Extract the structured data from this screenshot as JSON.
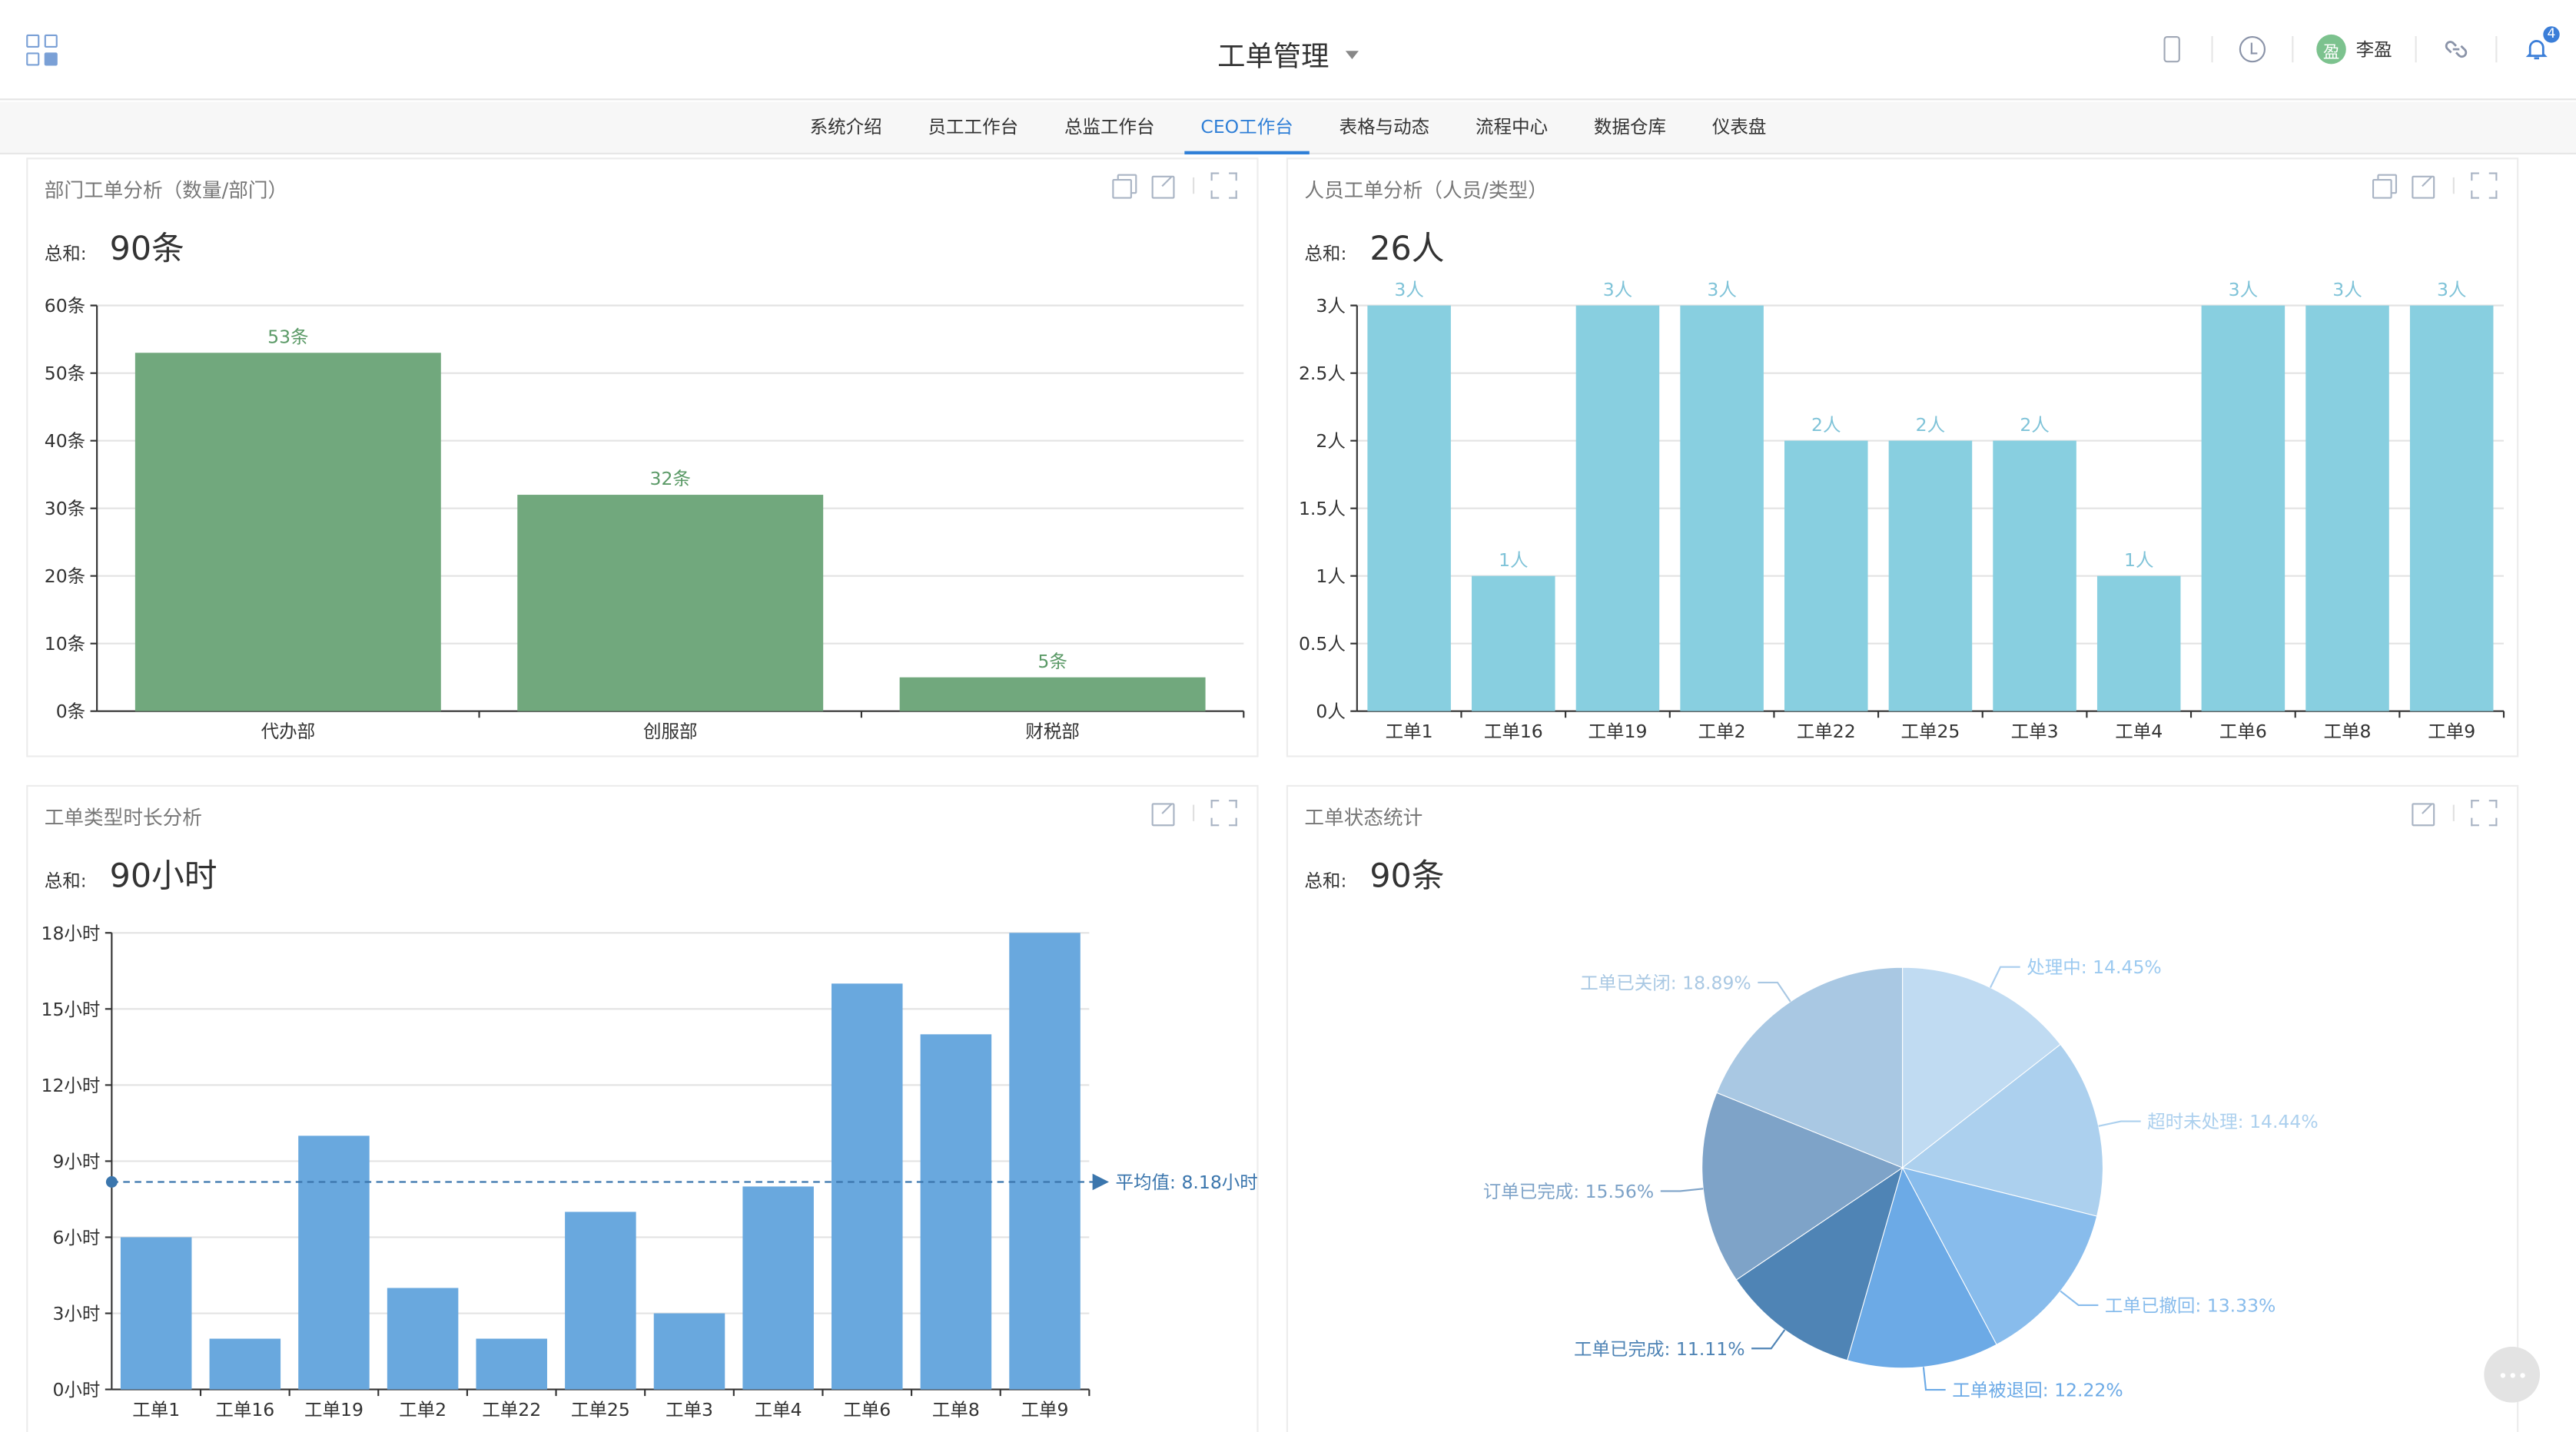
{
  "header": {
    "title": "工单管理",
    "user_initial": "盈",
    "user_name": "李盈",
    "notification_count": "4"
  },
  "tabs": [
    {
      "label": "系统介绍",
      "active": false
    },
    {
      "label": "员工工作台",
      "active": false
    },
    {
      "label": "总监工作台",
      "active": false
    },
    {
      "label": "CEO工作台",
      "active": true
    },
    {
      "label": "表格与动态",
      "active": false
    },
    {
      "label": "流程中心",
      "active": false
    },
    {
      "label": "数据仓库",
      "active": false
    },
    {
      "label": "仪表盘",
      "active": false
    }
  ],
  "panels": {
    "dept": {
      "title": "部门工单分析（数量/部门）",
      "total_label": "总和:",
      "total_value": "90条"
    },
    "person": {
      "title": "人员工单分析（人员/类型）",
      "total_label": "总和:",
      "total_value": "26人"
    },
    "duration": {
      "title": "工单类型时长分析",
      "total_label": "总和:",
      "total_value": "90小时"
    },
    "status": {
      "title": "工单状态统计",
      "total_label": "总和:",
      "total_value": "90条"
    }
  },
  "colors": {
    "green": "#71a87d",
    "cyan": "#88cfe0",
    "blue": "#69a8de",
    "accent": "#2f7fd7"
  },
  "chart_data": [
    {
      "type": "bar",
      "categories": [
        "代办部",
        "创服部",
        "财税部"
      ],
      "values": [
        53,
        32,
        5
      ],
      "value_labels": [
        "53条",
        "32条",
        "5条"
      ],
      "y_ticks": [
        "0条",
        "10条",
        "20条",
        "30条",
        "40条",
        "50条",
        "60条"
      ],
      "ylim": [
        0,
        60
      ]
    },
    {
      "type": "bar",
      "categories": [
        "工单1",
        "工单16",
        "工单19",
        "工单2",
        "工单22",
        "工单25",
        "工单3",
        "工单4",
        "工单6",
        "工单8",
        "工单9"
      ],
      "values": [
        3,
        1,
        3,
        3,
        2,
        2,
        2,
        1,
        3,
        3,
        3
      ],
      "value_labels": [
        "3人",
        "1人",
        "3人",
        "3人",
        "2人",
        "2人",
        "2人",
        "1人",
        "3人",
        "3人",
        "3人"
      ],
      "y_ticks": [
        "0人",
        "0.5人",
        "1人",
        "1.5人",
        "2人",
        "2.5人",
        "3人"
      ],
      "ylim": [
        0,
        3
      ]
    },
    {
      "type": "bar",
      "categories": [
        "工单1",
        "工单16",
        "工单19",
        "工单2",
        "工单22",
        "工单25",
        "工单3",
        "工单4",
        "工单6",
        "工单8",
        "工单9"
      ],
      "values": [
        6,
        2,
        10,
        4,
        2,
        7,
        3,
        8,
        16,
        14,
        18
      ],
      "y_ticks": [
        "0小时",
        "3小时",
        "6小时",
        "9小时",
        "12小时",
        "15小时",
        "18小时"
      ],
      "ylim": [
        0,
        18
      ],
      "average": 8.18,
      "average_label": "平均值:  8.18小时"
    },
    {
      "type": "pie",
      "slices": [
        {
          "label": "处理中: 14.45%",
          "value": 14.45,
          "color": "#c0dbf2"
        },
        {
          "label": "超时未处理: 14.44%",
          "value": 14.44,
          "color": "#acd0ee"
        },
        {
          "label": "工单已撤回: 13.33%",
          "value": 13.33,
          "color": "#88bcec"
        },
        {
          "label": "工单被退回: 12.22%",
          "value": 12.22,
          "color": "#6caae6"
        },
        {
          "label": "工单已完成: 11.11%",
          "value": 11.11,
          "color": "#4f84b5"
        },
        {
          "label": "订单已完成: 15.56%",
          "value": 15.56,
          "color": "#7ea3c8"
        },
        {
          "label": "工单已关闭: 18.89%",
          "value": 18.89,
          "color": "#a9c8e3"
        }
      ]
    }
  ]
}
